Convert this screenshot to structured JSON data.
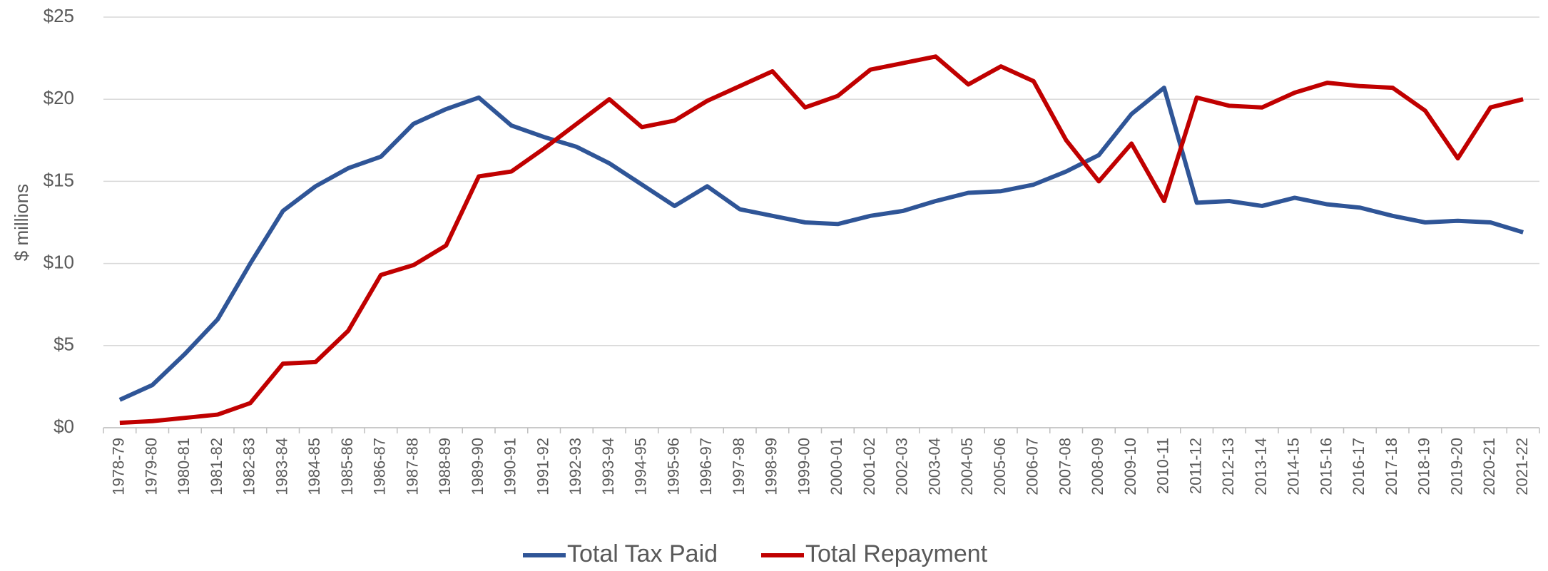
{
  "chart_data": {
    "type": "line",
    "y_label": "$ millions",
    "categories": [
      "1978-79",
      "1979-80",
      "1980-81",
      "1981-82",
      "1982-83",
      "1983-84",
      "1984-85",
      "1985-86",
      "1986-87",
      "1987-88",
      "1988-89",
      "1989-90",
      "1990-91",
      "1991-92",
      "1992-93",
      "1993-94",
      "1994-95",
      "1995-96",
      "1996-97",
      "1997-98",
      "1998-99",
      "1999-00",
      "2000-01",
      "2001-02",
      "2002-03",
      "2003-04",
      "2004-05",
      "2005-06",
      "2006-07",
      "2007-08",
      "2008-09",
      "2009-10",
      "2010-11",
      "2011-12",
      "2012-13",
      "2013-14",
      "2014-15",
      "2015-16",
      "2016-17",
      "2017-18",
      "2018-19",
      "2019-20",
      "2020-21",
      "2021-22"
    ],
    "series": [
      {
        "name": "Total Tax Paid",
        "color": "#2f5597",
        "values": [
          1.7,
          2.6,
          4.5,
          6.6,
          10.0,
          13.2,
          14.7,
          15.8,
          16.5,
          18.5,
          19.4,
          20.1,
          18.4,
          17.7,
          17.1,
          16.1,
          14.8,
          13.5,
          14.7,
          13.3,
          12.9,
          12.5,
          12.4,
          12.9,
          13.2,
          13.8,
          14.3,
          14.4,
          14.8,
          15.6,
          16.6,
          19.1,
          20.7,
          13.7,
          13.8,
          13.5,
          14.0,
          13.6,
          13.4,
          12.9,
          12.5,
          12.6,
          12.5,
          11.9
        ]
      },
      {
        "name": "Total Repayment",
        "color": "#c00000",
        "values": [
          0.3,
          0.4,
          0.6,
          0.8,
          1.5,
          3.9,
          4.0,
          5.9,
          9.3,
          9.9,
          11.1,
          15.3,
          15.6,
          17.0,
          18.5,
          20.0,
          18.3,
          18.7,
          19.9,
          20.8,
          21.7,
          19.5,
          20.2,
          21.8,
          22.2,
          22.6,
          20.9,
          22.0,
          21.1,
          17.5,
          15.0,
          17.3,
          13.8,
          20.1,
          19.6,
          19.5,
          20.4,
          21.0,
          20.8,
          20.7,
          19.3,
          16.4,
          19.5,
          20.0
        ]
      }
    ],
    "ylim": [
      0,
      25
    ],
    "yticks": [
      {
        "value": 0,
        "label": "$0"
      },
      {
        "value": 5,
        "label": "$5"
      },
      {
        "value": 10,
        "label": "$10"
      },
      {
        "value": 15,
        "label": "$15"
      },
      {
        "value": 20,
        "label": "$20"
      },
      {
        "value": 25,
        "label": "$25"
      }
    ],
    "grid": true,
    "legend": "bottom"
  }
}
